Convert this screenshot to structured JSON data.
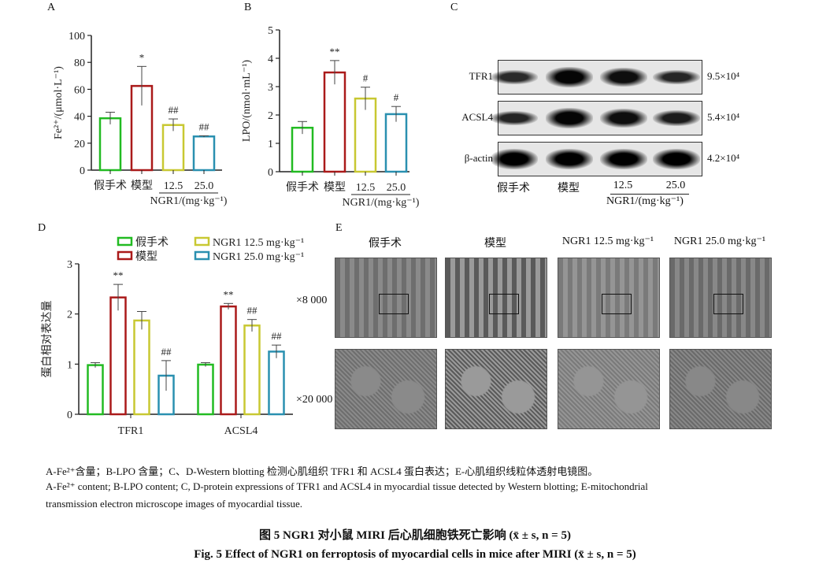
{
  "panels": {
    "a": "A",
    "b": "B",
    "c": "C",
    "d": "D",
    "e": "E"
  },
  "groups": [
    "假手术",
    "模型",
    "12.5",
    "25.0"
  ],
  "group_axis_title": "NGR1/(mg·kg⁻¹)",
  "colors": {
    "sham": "#22bb22",
    "model": "#aa1a1a",
    "ngr_low": "#c8c832",
    "ngr_high": "#2a90b0"
  },
  "chart_data": [
    {
      "type": "bar",
      "panel": "A",
      "categories": [
        "假手术",
        "模型",
        "12.5",
        "25.0"
      ],
      "values": [
        38.5,
        62.5,
        33.5,
        25.0
      ],
      "errors": [
        4.5,
        14.5,
        4.5,
        0.5
      ],
      "annotations": [
        "",
        "*",
        "##",
        "##"
      ],
      "ylabel": "Fe²⁺/(μmol·L⁻¹)",
      "ylim": [
        0,
        100
      ],
      "yticks": [
        0,
        20,
        40,
        60,
        80,
        100
      ],
      "xlabel": "NGR1/(mg·kg⁻¹)"
    },
    {
      "type": "bar",
      "panel": "B",
      "categories": [
        "假手术",
        "模型",
        "12.5",
        "25.0"
      ],
      "values": [
        1.55,
        3.5,
        2.58,
        2.03
      ],
      "errors": [
        0.22,
        0.42,
        0.4,
        0.27
      ],
      "annotations": [
        "",
        "**",
        "#",
        "#"
      ],
      "ylabel": "LPO/(nmol·mL⁻¹)",
      "ylim": [
        0,
        5
      ],
      "yticks": [
        0,
        1,
        2,
        3,
        4,
        5
      ],
      "xlabel": "NGR1/(mg·kg⁻¹)"
    },
    {
      "type": "bar",
      "panel": "D",
      "categories": [
        "TFR1",
        "ACSL4"
      ],
      "series": [
        {
          "name": "假手术",
          "values": [
            0.98,
            0.99
          ],
          "errors": [
            0.05,
            0.04
          ],
          "annotations": [
            "",
            ""
          ]
        },
        {
          "name": "模型",
          "values": [
            2.33,
            2.15
          ],
          "errors": [
            0.26,
            0.06
          ],
          "annotations": [
            "**",
            "**"
          ]
        },
        {
          "name": "NGR1 12.5 mg·kg⁻¹",
          "values": [
            1.87,
            1.77
          ],
          "errors": [
            0.18,
            0.12
          ],
          "annotations": [
            "",
            "##"
          ]
        },
        {
          "name": "NGR1 25.0 mg·kg⁻¹",
          "values": [
            0.77,
            1.25
          ],
          "errors": [
            0.3,
            0.13
          ],
          "annotations": [
            "##",
            "##"
          ]
        }
      ],
      "ylabel": "蛋白相对表达量",
      "ylim": [
        0,
        3
      ],
      "yticks": [
        0,
        1,
        2,
        3
      ],
      "legend": "top"
    }
  ],
  "blot": {
    "rows": [
      {
        "name": "TFR1",
        "mw": "9.5×10⁴",
        "intensity": [
          0.55,
          0.95,
          0.85,
          0.6
        ]
      },
      {
        "name": "ACSL4",
        "mw": "5.4×10⁴",
        "intensity": [
          0.6,
          0.95,
          0.85,
          0.7
        ]
      },
      {
        "name": "β-actin",
        "mw": "4.2×10⁴",
        "intensity": [
          1,
          1,
          1,
          1
        ]
      }
    ],
    "lanes": [
      "假手术",
      "模型",
      "12.5",
      "25.0"
    ],
    "axis_title": "NGR1/(mg·kg⁻¹)"
  },
  "tem": {
    "columns": [
      "假手术",
      "模型",
      "NGR1 12.5 mg·kg⁻¹",
      "NGR1 25.0 mg·kg⁻¹"
    ],
    "rows": [
      "×8 000",
      "×20 000"
    ]
  },
  "caption": {
    "cn": "A-Fe²⁺含量；B-LPO 含量；C、D-Western blotting 检测心肌组织 TFR1 和 ACSL4 蛋白表达；E-心肌组织线粒体透射电镜图。",
    "en1": "A-Fe²⁺ content; B-LPO content; C, D-protein expressions of TFR1 and ACSL4 in myocardial tissue detected by Western blotting; E-mitochondrial",
    "en2": "transmission electron microscope images of myocardial tissue.",
    "title_cn": "图 5   NGR1 对小鼠 MIRI 后心肌细胞铁死亡影响 (x̄ ± s, n = 5)",
    "title_en": "Fig. 5   Effect of NGR1 on ferroptosis of myocardial cells in mice after MIRI (x̄ ± s, n = 5)"
  }
}
